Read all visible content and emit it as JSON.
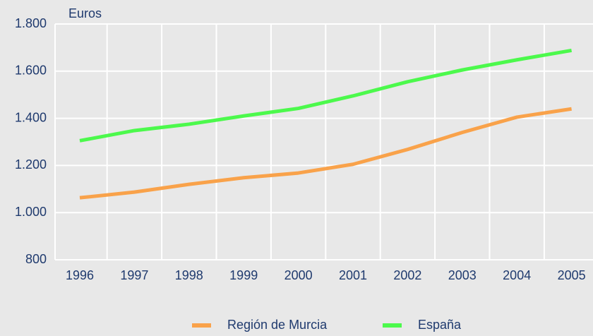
{
  "chart_data": {
    "type": "line",
    "y_label": "Euros",
    "categories": [
      "1996",
      "1997",
      "1998",
      "1999",
      "2000",
      "2001",
      "2002",
      "2003",
      "2004",
      "2005"
    ],
    "series": [
      {
        "name": "Región de Murcia",
        "color": "#f9a24a",
        "values": [
          1063,
          1087,
          1120,
          1148,
          1168,
          1205,
          1268,
          1340,
          1405,
          1440
        ]
      },
      {
        "name": "España",
        "color": "#4cf94c",
        "values": [
          1305,
          1348,
          1375,
          1410,
          1442,
          1495,
          1555,
          1605,
          1648,
          1688
        ]
      }
    ],
    "ylim": [
      800,
      1800
    ],
    "yticks": [
      800,
      {
        "value": 1000,
        "label": "1.000"
      },
      {
        "value": 1200,
        "label": "1.200"
      },
      {
        "value": 1400,
        "label": "1.400"
      },
      {
        "value": 1600,
        "label": "1.600"
      },
      {
        "value": 1800,
        "label": "1.800"
      }
    ],
    "grid": true,
    "legend": "bottom"
  }
}
